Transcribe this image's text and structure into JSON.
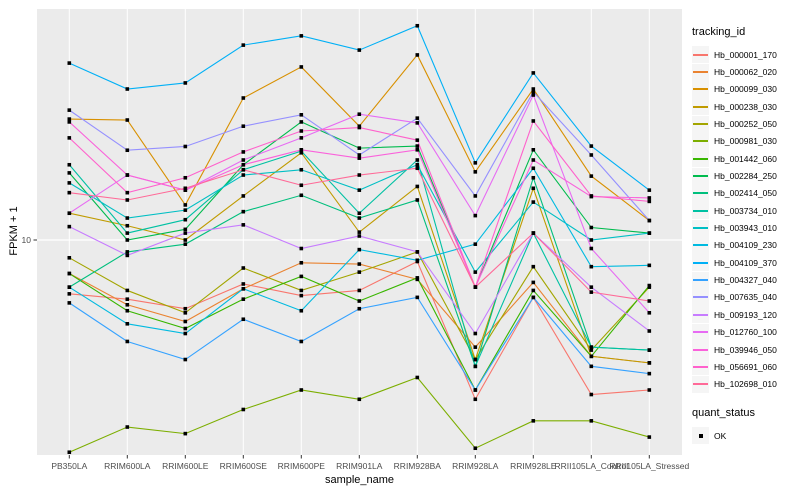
{
  "figure": {
    "y_axis_title": "FPKM + 1",
    "x_axis_title": "sample_name",
    "legend": {
      "tracking_title": "tracking_id",
      "quant_title": "quant_status",
      "quant_ok_label": "OK"
    },
    "colors": {
      "panel_bg": "#EBEBEB",
      "grid": "#FFFFFF",
      "axis_text": "#4D4D4D",
      "tick_mark": "#333333",
      "point": "#000000",
      "legend_key_bg": "#F5F5F5"
    }
  },
  "chart_data": {
    "type": "line",
    "title": "",
    "xlabel": "sample_name",
    "ylabel": "FPKM + 1",
    "y_scale": "log10",
    "grid": true,
    "legend_position": "right",
    "point_shape": "filled-black-square (quant_status = OK)",
    "y_ticks": [
      {
        "label": "10",
        "value": 10
      }
    ],
    "ylim_log10": [
      0.08,
      1.98
    ],
    "categories": [
      "PB350LA",
      "RRIM600LA",
      "RRIM600LE",
      "RRIM600SE",
      "RRIM600PE",
      "RRIM901LA",
      "RRIM928BA",
      "RRIM928LA",
      "RRIM928LE",
      "RRII105LA_Control",
      "RRII105LA_Stressed"
    ],
    "series": [
      {
        "name": "Hb_000001_170",
        "color": "#F8766D",
        "values": [
          5.9,
          5.6,
          5.1,
          6.5,
          5.8,
          6.1,
          8.1,
          2.1,
          5.7,
          2.2,
          2.3
        ]
      },
      {
        "name": "Hb_000062_020",
        "color": "#EA8331",
        "values": [
          7.2,
          5.3,
          4.5,
          6.2,
          8.0,
          7.9,
          6.8,
          3.5,
          6.6,
          3.2,
          3.0
        ]
      },
      {
        "name": "Hb_000099_030",
        "color": "#D89000",
        "values": [
          32.7,
          32.4,
          14.1,
          40.2,
          54.5,
          30.5,
          61.3,
          19.5,
          43.9,
          18.7,
          12.1
        ]
      },
      {
        "name": "Hb_000238_030",
        "color": "#C09B00",
        "values": [
          13.0,
          11.5,
          10.0,
          15.4,
          23.5,
          10.8,
          16.9,
          3.1,
          16.6,
          3.2,
          3.0
        ]
      },
      {
        "name": "Hb_000252_050",
        "color": "#A3A500",
        "values": [
          8.4,
          6.1,
          4.9,
          7.6,
          6.1,
          7.3,
          8.9,
          3.1,
          7.7,
          3.4,
          6.3
        ]
      },
      {
        "name": "Hb_000981_030",
        "color": "#7CAE00",
        "values": [
          1.25,
          1.6,
          1.5,
          1.9,
          2.3,
          2.1,
          2.6,
          1.3,
          1.7,
          1.7,
          1.45
        ]
      },
      {
        "name": "Hb_001442_060",
        "color": "#39B600",
        "values": [
          7.2,
          5.0,
          4.2,
          5.6,
          7.0,
          5.5,
          6.9,
          2.3,
          6.1,
          3.2,
          6.4
        ]
      },
      {
        "name": "Hb_002284_250",
        "color": "#00BB4E",
        "values": [
          19.3,
          10.0,
          11.1,
          20.9,
          31.8,
          24.6,
          25.1,
          6.3,
          24.2,
          11.3,
          10.7
        ]
      },
      {
        "name": "Hb_002414_050",
        "color": "#00BF7D",
        "values": [
          6.3,
          8.9,
          9.6,
          13.2,
          15.5,
          12.4,
          14.8,
          2.9,
          18.4,
          3.5,
          3.4
        ]
      },
      {
        "name": "Hb_003734_010",
        "color": "#00C1A3",
        "values": [
          20.9,
          10.7,
          12.2,
          19.9,
          23.9,
          13.0,
          21.9,
          2.9,
          10.7,
          3.5,
          3.4
        ]
      },
      {
        "name": "Hb_003943_010",
        "color": "#00BFC4",
        "values": [
          17.5,
          12.4,
          13.4,
          18.9,
          19.9,
          16.3,
          20.9,
          7.3,
          14.5,
          10.0,
          10.7
        ]
      },
      {
        "name": "Hb_004109_230",
        "color": "#00BAE0",
        "values": [
          6.3,
          4.4,
          4.0,
          6.2,
          5.0,
          9.1,
          8.2,
          9.6,
          20.2,
          7.7,
          7.8
        ]
      },
      {
        "name": "Hb_004109_370",
        "color": "#00B0F6",
        "values": [
          56.6,
          43.9,
          46.6,
          67.5,
          73.9,
          64.3,
          81.6,
          21.3,
          51.4,
          25.1,
          16.3
        ]
      },
      {
        "name": "Hb_004327_040",
        "color": "#35A2FF",
        "values": [
          5.4,
          3.7,
          3.1,
          4.6,
          3.7,
          5.1,
          5.7,
          2.3,
          5.7,
          2.9,
          2.7
        ]
      },
      {
        "name": "Hb_007635_040",
        "color": "#9590FF",
        "values": [
          35.7,
          24.1,
          25.0,
          30.5,
          34.1,
          23.0,
          33.0,
          15.4,
          42.7,
          23.0,
          12.1
        ]
      },
      {
        "name": "Hb_009193_120",
        "color": "#C77CFF",
        "values": [
          11.4,
          8.6,
          10.7,
          11.6,
          9.2,
          10.4,
          8.9,
          4.0,
          10.7,
          6.3,
          4.1
        ]
      },
      {
        "name": "Hb_012760_100",
        "color": "#E76BF3",
        "values": [
          13.0,
          18.9,
          16.3,
          21.9,
          27.2,
          34.3,
          31.5,
          12.7,
          41.4,
          9.2,
          4.9
        ]
      },
      {
        "name": "Hb_039946_050",
        "color": "#FA62DB",
        "values": [
          31.8,
          18.9,
          16.3,
          20.9,
          24.2,
          22.3,
          24.2,
          6.3,
          21.9,
          15.3,
          15.1
        ]
      },
      {
        "name": "Hb_056691_060",
        "color": "#FF61CC",
        "values": [
          27.2,
          15.9,
          18.4,
          23.7,
          29.1,
          30.1,
          26.6,
          6.3,
          32.1,
          15.4,
          14.6
        ]
      },
      {
        "name": "Hb_102698_010",
        "color": "#FF6A98",
        "values": [
          15.9,
          14.8,
          16.6,
          19.9,
          17.1,
          18.9,
          20.2,
          6.3,
          10.7,
          6.0,
          5.5
        ]
      }
    ]
  }
}
